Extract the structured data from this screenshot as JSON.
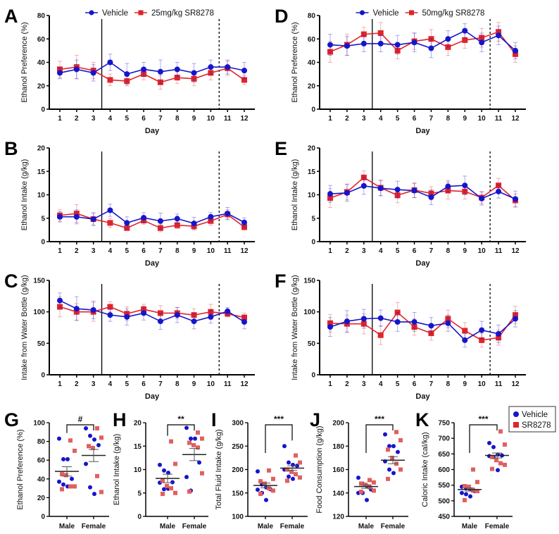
{
  "colors": {
    "vehicle": "#1515cc",
    "treatment": "#e0242a",
    "treatment_scatter": "#e06060"
  },
  "chart_data": [
    {
      "panel": "A",
      "type": "line",
      "ylabel": "Ethanol Preference (%)",
      "xlabel": "Day",
      "ylim": [
        0,
        80
      ],
      "yticks": [
        "0",
        "20",
        "40",
        "60",
        "80"
      ],
      "categories": [
        "1",
        "2",
        "3",
        "4",
        "5",
        "6",
        "7",
        "8",
        "9",
        "10",
        "11",
        "12"
      ],
      "legend": [
        "Vehicle",
        "25mg/kg SR8278"
      ],
      "series": [
        {
          "name": "Vehicle",
          "values": [
            31,
            34,
            31,
            40,
            30,
            34,
            32,
            34,
            31,
            36,
            36,
            33
          ],
          "error": [
            5,
            8,
            7,
            7,
            9,
            6,
            10,
            6,
            8,
            6,
            6,
            7
          ]
        },
        {
          "name": "25mg/kg SR8278",
          "values": [
            34,
            36,
            33,
            25,
            24,
            30,
            23,
            27,
            26,
            31,
            35,
            25
          ],
          "error": [
            7,
            10,
            7,
            5,
            4,
            5,
            6,
            5,
            6,
            6,
            6,
            4
          ]
        }
      ]
    },
    {
      "panel": "D",
      "type": "line",
      "ylabel": "Ethanol Preference (%)",
      "xlabel": "Day",
      "ylim": [
        0,
        80
      ],
      "yticks": [
        "0",
        "20",
        "40",
        "60",
        "80"
      ],
      "categories": [
        "1",
        "2",
        "3",
        "4",
        "5",
        "6",
        "7",
        "8",
        "9",
        "10",
        "11",
        "12"
      ],
      "legend": [
        "Vehicle",
        "50mg/kg SR8278"
      ],
      "series": [
        {
          "name": "Vehicle",
          "values": [
            55,
            54,
            56,
            56,
            55,
            57,
            52,
            60,
            67,
            57,
            63,
            50
          ],
          "error": [
            9,
            8,
            7,
            7,
            8,
            8,
            8,
            7,
            6,
            8,
            8,
            7
          ]
        },
        {
          "name": "50mg/kg SR8278",
          "values": [
            49,
            55,
            64,
            65,
            50,
            58,
            60,
            53,
            59,
            61,
            66,
            47
          ],
          "error": [
            9,
            9,
            6,
            9,
            7,
            7,
            8,
            7,
            7,
            8,
            8,
            7
          ]
        }
      ]
    },
    {
      "panel": "B",
      "type": "line",
      "ylabel": "Ethanol Intake (g/kg)",
      "xlabel": "Day",
      "ylim": [
        0,
        20
      ],
      "yticks": [
        "0",
        "5",
        "10",
        "15",
        "20"
      ],
      "categories": [
        "1",
        "2",
        "3",
        "4",
        "5",
        "6",
        "7",
        "8",
        "9",
        "10",
        "11",
        "12"
      ],
      "series": [
        {
          "name": "Vehicle",
          "values": [
            5.3,
            5.3,
            4.8,
            6.7,
            4.0,
            5.1,
            4.4,
            4.9,
            3.9,
            5.3,
            6.0,
            4.1
          ],
          "error": [
            1.1,
            1.5,
            1.4,
            1.3,
            1.3,
            1.1,
            1.7,
            1.0,
            1.3,
            0.9,
            1.3,
            1.0
          ]
        },
        {
          "name": "25mg/kg SR8278",
          "values": [
            5.6,
            6.0,
            4.8,
            4.0,
            2.9,
            4.5,
            2.9,
            3.5,
            3.3,
            4.4,
            5.8,
            3.1
          ],
          "error": [
            1.2,
            1.9,
            1.2,
            1.0,
            0.5,
            0.8,
            0.8,
            0.7,
            0.8,
            0.9,
            1.0,
            0.6
          ]
        }
      ]
    },
    {
      "panel": "E",
      "type": "line",
      "ylabel": "Ethanol Intake (g/kg)",
      "xlabel": "Day",
      "ylim": [
        0,
        20
      ],
      "yticks": [
        "0",
        "5",
        "10",
        "15",
        "20"
      ],
      "categories": [
        "1",
        "2",
        "3",
        "4",
        "5",
        "6",
        "7",
        "8",
        "9",
        "10",
        "11",
        "12"
      ],
      "series": [
        {
          "name": "Vehicle",
          "values": [
            10.2,
            10.4,
            11.9,
            11.4,
            11.1,
            10.9,
            9.5,
            11.8,
            12.0,
            9.2,
            10.7,
            9.1
          ],
          "error": [
            1.8,
            1.8,
            1.8,
            1.6,
            1.8,
            1.5,
            1.6,
            1.2,
            2.0,
            1.4,
            1.4,
            1.7
          ]
        },
        {
          "name": "50mg/kg SR8278",
          "values": [
            9.3,
            10.6,
            13.7,
            11.5,
            9.9,
            11.0,
            10.3,
            10.9,
            10.7,
            9.4,
            12.0,
            8.8
          ],
          "error": [
            2.0,
            1.7,
            1.4,
            1.7,
            1.6,
            1.6,
            1.4,
            1.8,
            1.6,
            1.3,
            1.5,
            1.4
          ]
        }
      ]
    },
    {
      "panel": "C",
      "type": "line",
      "ylabel": "Intake from  Water  Bottle  (g/kg)",
      "xlabel": "Day",
      "ylim": [
        0,
        150
      ],
      "yticks": [
        "0",
        "50",
        "100",
        "150"
      ],
      "categories": [
        "1",
        "2",
        "3",
        "4",
        "5",
        "6",
        "7",
        "8",
        "9",
        "10",
        "11",
        "12"
      ],
      "series": [
        {
          "name": "Vehicle",
          "values": [
            118,
            105,
            103,
            95,
            92,
            98,
            85,
            95,
            85,
            92,
            101,
            84
          ],
          "error": [
            12,
            19,
            14,
            10,
            13,
            11,
            13,
            12,
            12,
            10,
            6,
            11
          ]
        },
        {
          "name": "25mg/kg SR8278",
          "values": [
            108,
            100,
            100,
            108,
            97,
            104,
            98,
            98,
            95,
            100,
            97,
            91
          ],
          "error": [
            16,
            13,
            15,
            8,
            11,
            8,
            12,
            9,
            10,
            12,
            5,
            7
          ]
        }
      ]
    },
    {
      "panel": "F",
      "type": "line",
      "ylabel": "Intake from  Water  Bottle  (g/kg)",
      "xlabel": "Day",
      "ylim": [
        0,
        150
      ],
      "yticks": [
        "0",
        "50",
        "100",
        "150"
      ],
      "categories": [
        "1",
        "2",
        "3",
        "4",
        "5",
        "6",
        "7",
        "8",
        "9",
        "10",
        "11",
        "12"
      ],
      "series": [
        {
          "name": "Vehicle",
          "values": [
            76,
            85,
            89,
            90,
            84,
            84,
            78,
            82,
            55,
            71,
            65,
            89
          ],
          "error": [
            15,
            17,
            15,
            13,
            15,
            15,
            13,
            13,
            11,
            14,
            14,
            13
          ]
        },
        {
          "name": "50mg/kg SR8278",
          "values": [
            82,
            81,
            81,
            63,
            99,
            76,
            66,
            89,
            70,
            55,
            59,
            95
          ],
          "error": [
            14,
            14,
            16,
            15,
            16,
            13,
            11,
            14,
            13,
            11,
            12,
            14
          ]
        }
      ]
    },
    {
      "panel": "G",
      "type": "scatter",
      "ylabel": "Ethanol Preference (%)",
      "ylim": [
        0,
        100
      ],
      "yticks": [
        "0",
        "20",
        "40",
        "60",
        "80",
        "100"
      ],
      "categories": [
        "Male",
        "Female"
      ],
      "significance": "#",
      "groups": [
        {
          "name": "Male",
          "mean": 48,
          "sem": 5,
          "Vehicle": [
            83,
            61,
            61,
            40,
            37,
            34,
            32
          ],
          "SR8278": [
            81,
            70,
            45,
            44,
            32,
            32,
            29
          ]
        },
        {
          "name": "Female",
          "mean": 65,
          "sem": 6.5,
          "Vehicle": [
            94,
            86,
            82,
            76,
            56,
            31,
            24
          ],
          "SR8278": [
            94,
            84,
            75,
            73,
            43,
            26
          ]
        }
      ]
    },
    {
      "panel": "H",
      "type": "scatter",
      "ylabel": "Ethanol Intake (g/kg)",
      "ylim": [
        0,
        20
      ],
      "yticks": [
        "0",
        "5",
        "10",
        "15",
        "20"
      ],
      "categories": [
        "Male",
        "Female"
      ],
      "significance": "**",
      "groups": [
        {
          "name": "Male",
          "mean": 8.1,
          "sem": 0.9,
          "Vehicle": [
            11,
            9.8,
            9.3,
            7.3,
            7.2,
            5.8,
            5.9
          ],
          "SR8278": [
            16,
            11.2,
            7.6,
            6.5,
            6,
            5,
            4.8
          ]
        },
        {
          "name": "Female",
          "mean": 13.2,
          "sem": 1.3,
          "Vehicle": [
            18.9,
            16.6,
            16.6,
            11.5,
            8.4,
            5.5
          ],
          "SR8278": [
            17.9,
            16.6,
            15.7,
            15.2,
            14.7,
            9.2,
            5.3
          ]
        }
      ]
    },
    {
      "panel": "I",
      "type": "scatter",
      "ylabel": "Total Fluid Intake  (g/kg)",
      "ylim": [
        100,
        300
      ],
      "yticks": [
        "100",
        "150",
        "200",
        "250",
        "300"
      ],
      "categories": [
        "Male",
        "Female"
      ],
      "significance": "***",
      "groups": [
        {
          "name": "Male",
          "mean": 166,
          "sem": 5,
          "Vehicle": [
            196,
            168,
            162,
            158,
            157,
            150,
            135
          ],
          "SR8278": [
            198,
            180,
            175,
            170,
            160,
            155,
            148
          ]
        },
        {
          "name": "Female",
          "mean": 203,
          "sem": 5,
          "Vehicle": [
            250,
            215,
            210,
            208,
            200,
            185,
            180
          ],
          "SR8278": [
            230,
            215,
            200,
            195,
            190,
            183,
            176
          ]
        }
      ]
    },
    {
      "panel": "J",
      "type": "scatter",
      "ylabel": "Food Consumption (g/kg)",
      "ylim": [
        120,
        200
      ],
      "yticks": [
        "120",
        "140",
        "160",
        "180",
        "200"
      ],
      "categories": [
        "Male",
        "Female"
      ],
      "significance": "***",
      "groups": [
        {
          "name": "Male",
          "mean": 145.5,
          "sem": 1.5,
          "Vehicle": [
            153,
            148,
            146,
            143,
            140,
            140,
            134
          ],
          "SR8278": [
            151,
            149,
            148,
            147,
            145,
            142,
            141
          ]
        },
        {
          "name": "Female",
          "mean": 168,
          "sem": 3,
          "Vehicle": [
            190,
            180,
            180,
            175,
            167,
            160,
            157
          ],
          "SR8278": [
            192,
            185,
            177,
            170,
            165,
            160,
            152
          ]
        }
      ]
    },
    {
      "panel": "K",
      "type": "scatter",
      "ylabel": "Caloric Intake (cal/kg)",
      "ylim": [
        450,
        750
      ],
      "yticks": [
        "450",
        "500",
        "550",
        "600",
        "650",
        "700",
        "750"
      ],
      "categories": [
        "Male",
        "Female"
      ],
      "significance": "***",
      "groups": [
        {
          "name": "Male",
          "mean": 536,
          "sem": 5,
          "Vehicle": [
            545,
            540,
            537,
            531,
            525,
            521,
            514
          ],
          "SR8278": [
            600,
            560,
            547,
            545,
            533,
            531,
            502
          ]
        },
        {
          "name": "Female",
          "mean": 645,
          "sem": 8,
          "Vehicle": [
            685,
            672,
            648,
            645,
            643,
            640,
            598
          ],
          "SR8278": [
            722,
            680,
            640,
            630,
            620,
            615,
            602
          ]
        }
      ]
    }
  ],
  "scatter_legend": [
    "Vehicle",
    "SR8278"
  ]
}
